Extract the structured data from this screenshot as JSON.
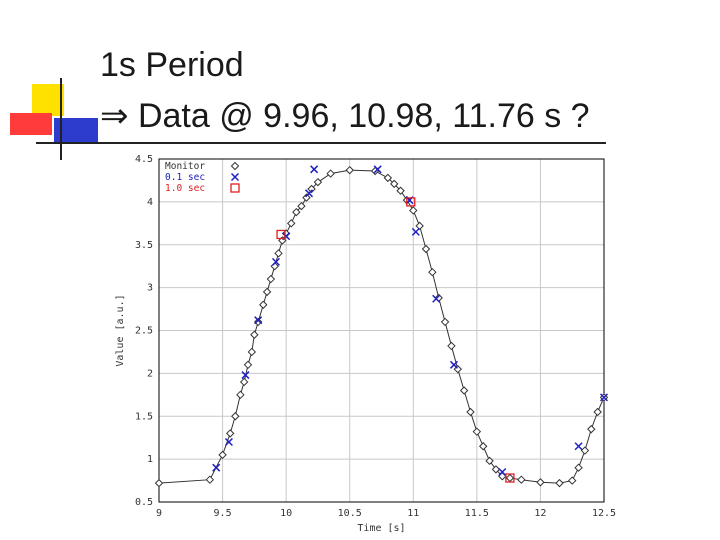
{
  "slide": {
    "title_line1": "1s Period",
    "title_line2_arrow": "⇒",
    "title_line2_text": "Data @ 9.96, 10.98, 11.76 s ?"
  },
  "chart_data": {
    "type": "scatter",
    "xlabel": "Time [s]",
    "ylabel": "Value [a.u.]",
    "xlim": [
      9,
      12.5
    ],
    "ylim": [
      0.5,
      4.5
    ],
    "xticks": [
      "9",
      "9.5",
      "10",
      "10.5",
      "11",
      "11.5",
      "12",
      "12.5"
    ],
    "yticks": [
      "0.5",
      "1",
      "1.5",
      "2",
      "2.5",
      "3",
      "3.5",
      "4",
      "4.5"
    ],
    "grid": true,
    "legend": {
      "placement": "top-left"
    },
    "series": [
      {
        "name": "Monitor",
        "marker": "diamond",
        "color": "#333333",
        "connected": true,
        "points": [
          [
            9.0,
            0.72
          ],
          [
            9.4,
            0.76
          ],
          [
            9.5,
            1.05
          ],
          [
            9.56,
            1.3
          ],
          [
            9.6,
            1.5
          ],
          [
            9.64,
            1.75
          ],
          [
            9.67,
            1.9
          ],
          [
            9.7,
            2.1
          ],
          [
            9.73,
            2.25
          ],
          [
            9.75,
            2.45
          ],
          [
            9.78,
            2.6
          ],
          [
            9.82,
            2.8
          ],
          [
            9.85,
            2.95
          ],
          [
            9.88,
            3.1
          ],
          [
            9.91,
            3.25
          ],
          [
            9.94,
            3.4
          ],
          [
            9.97,
            3.55
          ],
          [
            10.0,
            3.63
          ],
          [
            10.04,
            3.75
          ],
          [
            10.08,
            3.88
          ],
          [
            10.12,
            3.95
          ],
          [
            10.16,
            4.05
          ],
          [
            10.2,
            4.15
          ],
          [
            10.25,
            4.23
          ],
          [
            10.35,
            4.33
          ],
          [
            10.5,
            4.37
          ],
          [
            10.7,
            4.36
          ],
          [
            10.8,
            4.28
          ],
          [
            10.85,
            4.21
          ],
          [
            10.9,
            4.13
          ],
          [
            10.95,
            4.02
          ],
          [
            11.0,
            3.9
          ],
          [
            11.05,
            3.72
          ],
          [
            11.1,
            3.45
          ],
          [
            11.15,
            3.18
          ],
          [
            11.2,
            2.88
          ],
          [
            11.25,
            2.6
          ],
          [
            11.3,
            2.32
          ],
          [
            11.35,
            2.05
          ],
          [
            11.4,
            1.8
          ],
          [
            11.45,
            1.55
          ],
          [
            11.5,
            1.32
          ],
          [
            11.55,
            1.15
          ],
          [
            11.6,
            0.98
          ],
          [
            11.65,
            0.88
          ],
          [
            11.7,
            0.8
          ],
          [
            11.76,
            0.78
          ],
          [
            11.85,
            0.76
          ],
          [
            12.0,
            0.73
          ],
          [
            12.15,
            0.72
          ],
          [
            12.25,
            0.75
          ],
          [
            12.3,
            0.9
          ],
          [
            12.35,
            1.1
          ],
          [
            12.4,
            1.35
          ],
          [
            12.45,
            1.55
          ],
          [
            12.5,
            1.72
          ]
        ]
      },
      {
        "name": "0.1 sec",
        "marker": "x",
        "color": "#2020c0",
        "connected": false,
        "points": [
          [
            9.45,
            0.9
          ],
          [
            9.55,
            1.2
          ],
          [
            9.68,
            1.98
          ],
          [
            9.78,
            2.62
          ],
          [
            9.92,
            3.3
          ],
          [
            10.0,
            3.6
          ],
          [
            10.18,
            4.1
          ],
          [
            10.22,
            4.38
          ],
          [
            10.72,
            4.38
          ],
          [
            10.97,
            4.02
          ],
          [
            11.02,
            3.65
          ],
          [
            11.18,
            2.87
          ],
          [
            11.32,
            2.1
          ],
          [
            11.7,
            0.85
          ],
          [
            12.3,
            1.15
          ],
          [
            12.5,
            1.72
          ]
        ]
      },
      {
        "name": "1.0 sec",
        "marker": "square",
        "color": "#e02020",
        "connected": false,
        "points": [
          [
            9.96,
            3.62
          ],
          [
            10.98,
            4.0
          ],
          [
            11.76,
            0.78
          ]
        ]
      }
    ]
  }
}
